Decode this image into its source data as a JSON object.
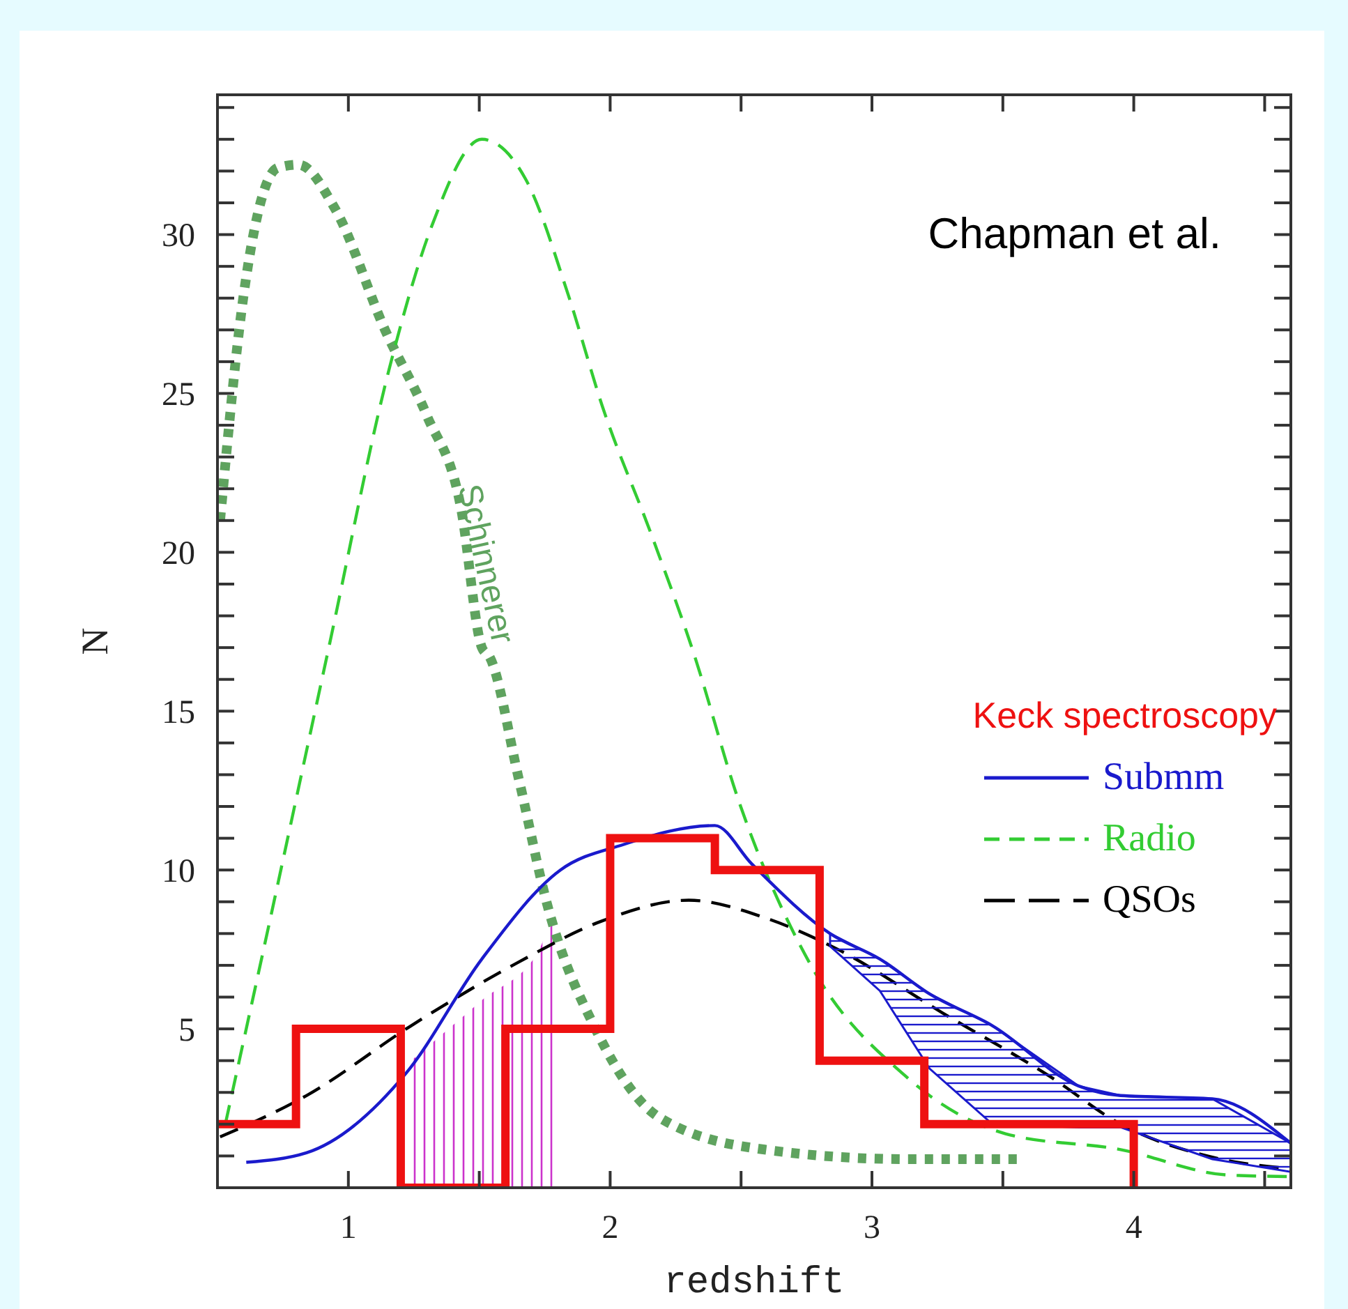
{
  "chart_data": {
    "type": "line",
    "xlabel": "redshift",
    "ylabel": "N",
    "legend_title": "Keck spectroscopy",
    "legend": "right",
    "annotations": [
      "Chapman et al.",
      {
        "text": "Schinnerer",
        "x": 1.51,
        "y": 17.0
      }
    ],
    "xlim": [
      0.5,
      4.6
    ],
    "ylim": [
      0,
      34.4
    ],
    "xticks": [
      1,
      {
        "value": 1.5,
        "label": null
      },
      2,
      {
        "value": 2.5,
        "label": null
      },
      3,
      {
        "value": 3.5,
        "label": null
      },
      4,
      {
        "value": 4.5,
        "label": null
      }
    ],
    "yticks": [
      {
        "value": 1,
        "label": null
      },
      {
        "value": 2,
        "label": null
      },
      {
        "value": 3,
        "label": null
      },
      {
        "value": 4,
        "label": null
      },
      5,
      {
        "value": 6,
        "label": null
      },
      {
        "value": 7,
        "label": null
      },
      {
        "value": 8,
        "label": null
      },
      {
        "value": 9,
        "label": null
      },
      10,
      {
        "value": 11,
        "label": null
      },
      {
        "value": 12,
        "label": null
      },
      {
        "value": 13,
        "label": null
      },
      {
        "value": 14,
        "label": null
      },
      15,
      {
        "value": 16,
        "label": null
      },
      {
        "value": 17,
        "label": null
      },
      {
        "value": 18,
        "label": null
      },
      {
        "value": 19,
        "label": null
      },
      20,
      {
        "value": 21,
        "label": null
      },
      {
        "value": 22,
        "label": null
      },
      {
        "value": 23,
        "label": null
      },
      {
        "value": 24,
        "label": null
      },
      25,
      {
        "value": 26,
        "label": null
      },
      {
        "value": 27,
        "label": null
      },
      {
        "value": 28,
        "label": null
      },
      {
        "value": 29,
        "label": null
      },
      30,
      {
        "value": 31,
        "label": null
      },
      {
        "value": 32,
        "label": null
      },
      {
        "value": 33,
        "label": null
      },
      {
        "value": 34,
        "label": null
      }
    ],
    "series": [
      {
        "type": "area",
        "color": "#cc33cc",
        "x": [
          1.24,
          1.51,
          1.73,
          1.78,
          1.8
        ],
        "values": [
          4.0,
          5.9,
          7.5,
          8.4,
          8.4
        ]
      },
      {
        "color": "#5fa35f",
        "line_style": "dotted",
        "x": [
          0.51,
          0.6,
          0.73,
          0.81,
          0.95,
          1.14,
          1.3,
          1.43,
          1.51,
          1.54,
          1.65,
          1.76,
          1.95,
          2.19,
          2.59,
          3.13,
          3.57
        ],
        "values": [
          21.0,
          28.1,
          32.1,
          32.2,
          30.8,
          27.0,
          24.3,
          21.4,
          17.0,
          16.7,
          12.9,
          8.9,
          4.9,
          2.2,
          1.2,
          0.9,
          0.9
        ]
      },
      {
        "name": "QSOs",
        "color": "#000000",
        "line_style": "dashed",
        "x": [
          0.51,
          0.84,
          1.24,
          1.65,
          1.97,
          2.3,
          2.59,
          2.87,
          3.27,
          3.68,
          3.95,
          4.3,
          4.6
        ],
        "values": [
          1.6,
          2.9,
          5.1,
          7.1,
          8.4,
          9.05,
          8.5,
          7.5,
          5.5,
          3.5,
          2.0,
          0.96,
          0.6
        ]
      },
      {
        "name": "Radio",
        "color": "#33cc33",
        "line_style": "dashed",
        "x": [
          0.53,
          0.7,
          0.92,
          1.16,
          1.32,
          1.51,
          1.68,
          1.84,
          1.97,
          2.16,
          2.32,
          2.49,
          2.76,
          3.13,
          3.51,
          3.95,
          4.36,
          4.6
        ],
        "values": [
          2.0,
          8.4,
          16.8,
          25.9,
          30.3,
          33.0,
          31.7,
          28.1,
          24.6,
          20.5,
          16.8,
          12.2,
          7.1,
          3.5,
          1.7,
          1.2,
          0.4,
          0.35
        ]
      },
      {
        "name": "Submm",
        "color": "#1a1acc",
        "line_style": "solid",
        "x": [
          0.61,
          0.84,
          1.22,
          1.51,
          1.81,
          2.05,
          2.4,
          2.54,
          2.84,
          3.03,
          3.22,
          3.46,
          3.79,
          3.95,
          4.3,
          4.6
        ],
        "values": [
          0.8,
          1.1,
          3.6,
          7.2,
          10.0,
          10.8,
          11.4,
          10.2,
          8.0,
          7.2,
          6.1,
          5.1,
          3.2,
          2.9,
          2.8,
          1.4
        ],
        "lower": [
          null,
          null,
          null,
          null,
          null,
          null,
          null,
          null,
          7.6,
          6.2,
          3.75,
          2.0,
          1.9,
          1.9,
          0.9,
          0.5
        ],
        "upper": [
          null,
          null,
          null,
          null,
          null,
          null,
          null,
          null,
          8.0,
          7.2,
          6.1,
          5.1,
          3.2,
          2.9,
          2.8,
          1.4
        ]
      },
      {
        "type": "histogram",
        "color": "#ee1111",
        "bins": [
          0.5,
          0.8,
          1.2,
          1.6,
          2.0,
          2.4,
          2.8,
          3.2,
          4.0
        ],
        "values": [
          2,
          5,
          0,
          5,
          11,
          10,
          4,
          2
        ]
      }
    ]
  }
}
